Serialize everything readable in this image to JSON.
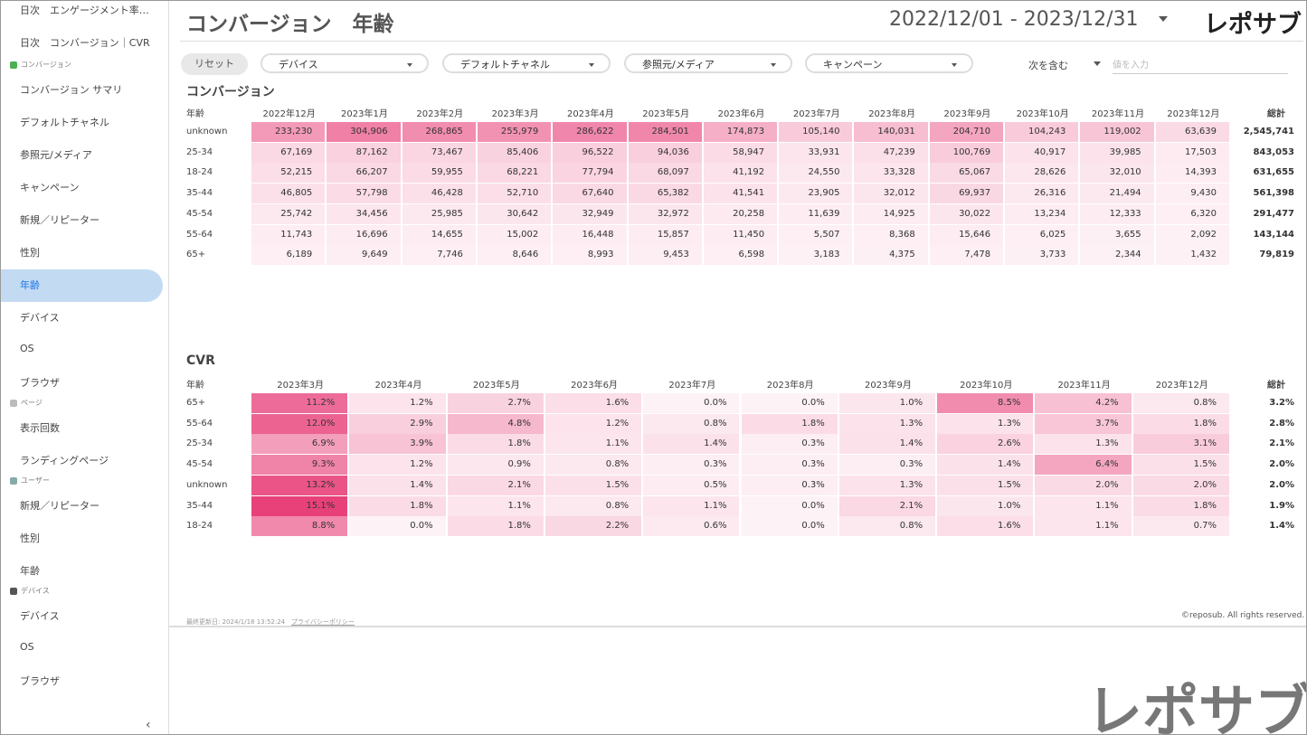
{
  "sidebar": {
    "top": [
      "日次　エンゲージメント率…",
      "日次　コンバージョン｜CVR"
    ],
    "sections": [
      {
        "label": "コンバージョン",
        "items": [
          "コンバージョン サマリ",
          "デフォルトチャネル",
          "参照元/メディア",
          "キャンペーン",
          "新規／リピーター",
          "性別",
          "年齢",
          "デバイス",
          "OS",
          "ブラウザ"
        ]
      },
      {
        "label": "ページ",
        "items": [
          "表示回数",
          "ランディングページ"
        ]
      },
      {
        "label": "ユーザー",
        "items": [
          "新規／リピーター",
          "性別",
          "年齢"
        ]
      },
      {
        "label": "デバイス",
        "items": [
          "デバイス",
          "OS",
          "ブラウザ"
        ]
      }
    ]
  },
  "header": {
    "title": "コンバージョン　年齢",
    "date_range": "2022/12/01 - 2023/12/31",
    "logo": "レポサブ"
  },
  "filters": {
    "reset": "リセット",
    "dropdowns": [
      "デバイス",
      "デフォルトチャネル",
      "参照元/メディア",
      "キャンペーン"
    ],
    "match": "次を含む",
    "placeholder": "値を入力"
  },
  "tables": [
    {
      "title": "コンバージョン",
      "header": [
        "年齢",
        "2022年12月",
        "2023年1月",
        "2023年2月",
        "2023年3月",
        "2023年4月",
        "2023年5月",
        "2023年6月",
        "2023年7月",
        "2023年8月",
        "2023年9月",
        "2023年10月",
        "2023年11月",
        "2023年12月",
        "総計"
      ],
      "rows": [
        [
          "unknown",
          "233,230",
          "304,906",
          "268,865",
          "255,979",
          "286,622",
          "284,501",
          "174,873",
          "105,140",
          "140,031",
          "204,710",
          "104,243",
          "119,002",
          "63,639",
          "2,545,741"
        ],
        [
          "25-34",
          "67,169",
          "87,162",
          "73,467",
          "85,406",
          "96,522",
          "94,036",
          "58,947",
          "33,931",
          "47,239",
          "100,769",
          "40,917",
          "39,985",
          "17,503",
          "843,053"
        ],
        [
          "18-24",
          "52,215",
          "66,207",
          "59,955",
          "68,221",
          "77,794",
          "68,097",
          "41,192",
          "24,550",
          "33,328",
          "65,067",
          "28,626",
          "32,010",
          "14,393",
          "631,655"
        ],
        [
          "35-44",
          "46,805",
          "57,798",
          "46,428",
          "52,710",
          "67,640",
          "65,382",
          "41,541",
          "23,905",
          "32,012",
          "69,937",
          "26,316",
          "21,494",
          "9,430",
          "561,398"
        ],
        [
          "45-54",
          "25,742",
          "34,456",
          "25,985",
          "30,642",
          "32,949",
          "32,972",
          "20,258",
          "11,639",
          "14,925",
          "30,022",
          "13,234",
          "12,333",
          "6,320",
          "291,477"
        ],
        [
          "55-64",
          "11,743",
          "16,696",
          "14,655",
          "15,002",
          "16,448",
          "15,857",
          "11,450",
          "5,507",
          "8,368",
          "15,646",
          "6,025",
          "3,655",
          "2,092",
          "143,144"
        ],
        [
          "65+",
          "6,189",
          "9,649",
          "7,746",
          "8,646",
          "8,993",
          "9,453",
          "6,598",
          "3,183",
          "4,375",
          "7,478",
          "3,733",
          "2,344",
          "1,432",
          "79,819"
        ]
      ]
    },
    {
      "title": "CVR",
      "header": [
        "年齢",
        "2023年3月",
        "2023年4月",
        "2023年5月",
        "2023年6月",
        "2023年7月",
        "2023年8月",
        "2023年9月",
        "2023年10月",
        "2023年11月",
        "2023年12月",
        "総計"
      ],
      "rows": [
        [
          "65+",
          "11.2%",
          "1.2%",
          "2.7%",
          "1.6%",
          "0.0%",
          "0.0%",
          "1.0%",
          "8.5%",
          "4.2%",
          "0.8%",
          "3.2%"
        ],
        [
          "55-64",
          "12.0%",
          "2.9%",
          "4.8%",
          "1.2%",
          "0.8%",
          "1.8%",
          "1.3%",
          "1.3%",
          "3.7%",
          "1.8%",
          "2.8%"
        ],
        [
          "25-34",
          "6.9%",
          "3.9%",
          "1.8%",
          "1.1%",
          "1.4%",
          "0.3%",
          "1.4%",
          "2.6%",
          "1.3%",
          "3.1%",
          "2.1%"
        ],
        [
          "45-54",
          "9.3%",
          "1.2%",
          "0.9%",
          "0.8%",
          "0.3%",
          "0.3%",
          "0.3%",
          "1.4%",
          "6.4%",
          "1.5%",
          "2.0%"
        ],
        [
          "unknown",
          "13.2%",
          "1.4%",
          "2.1%",
          "1.5%",
          "0.5%",
          "0.3%",
          "1.3%",
          "1.5%",
          "2.0%",
          "2.0%",
          "2.0%"
        ],
        [
          "35-44",
          "15.1%",
          "1.8%",
          "1.1%",
          "0.8%",
          "1.1%",
          "0.0%",
          "2.1%",
          "1.0%",
          "1.1%",
          "1.8%",
          "1.9%"
        ],
        [
          "18-24",
          "8.8%",
          "0.0%",
          "1.8%",
          "2.2%",
          "0.6%",
          "0.0%",
          "0.8%",
          "1.6%",
          "1.1%",
          "0.7%",
          "1.4%"
        ]
      ]
    }
  ],
  "footer": {
    "updated": "最終更新日: 2024/1/18 13:52:24",
    "privacy": "プライバシーポリシー",
    "copyright": "©reposub. All rights reserved."
  }
}
